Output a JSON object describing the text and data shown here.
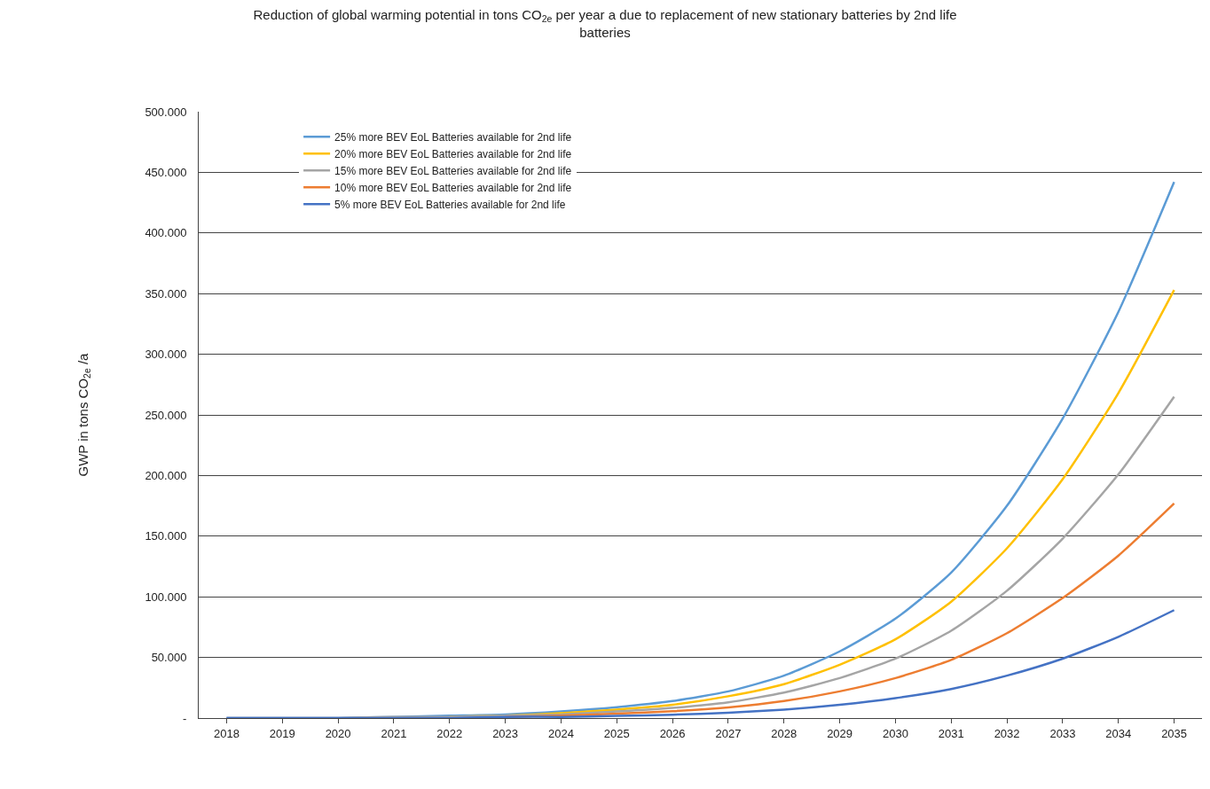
{
  "chart_data": {
    "type": "line",
    "title": "Reduction of global warming potential in tons CO$_{2e}$ per year a due to replacement of new stationary batteries by 2nd life batteries",
    "ylabel": "GWP in tons CO$_{2e}$ /a",
    "categories": [
      "2018",
      "2019",
      "2020",
      "2021",
      "2022",
      "2023",
      "2024",
      "2025",
      "2026",
      "2027",
      "2028",
      "2029",
      "2030",
      "2031",
      "2032",
      "2033",
      "2034",
      "2035"
    ],
    "series": [
      {
        "name": "25% more BEV EoL Batteries available for 2nd life",
        "color": "#5b9bd5",
        "values": [
          0,
          0,
          0,
          1000,
          2000,
          3000,
          5500,
          9000,
          14000,
          22000,
          35000,
          55000,
          82000,
          120000,
          175000,
          247000,
          335000,
          442000
        ]
      },
      {
        "name": "20% more BEV EoL Batteries available for 2nd life",
        "color": "#ffc000",
        "values": [
          null,
          null,
          null,
          null,
          1000,
          2000,
          4000,
          7000,
          11000,
          18000,
          28000,
          44000,
          65000,
          96000,
          140000,
          197000,
          268000,
          353000
        ]
      },
      {
        "name": "15% more BEV EoL Batteries available for 2nd life",
        "color": "#a5a5a5",
        "values": [
          0,
          0,
          0,
          1000,
          1000,
          2000,
          3000,
          5400,
          8400,
          13000,
          21000,
          33000,
          49000,
          72000,
          105000,
          148000,
          201000,
          265000
        ]
      },
      {
        "name": "10% more BEV EoL Batteries available for 2nd life",
        "color": "#ed7d31",
        "values": [
          null,
          null,
          null,
          null,
          null,
          1000,
          2000,
          3600,
          5600,
          8800,
          14000,
          22000,
          33000,
          48000,
          70000,
          99000,
          134000,
          177000
        ]
      },
      {
        "name": "5% more BEV EoL Batteries available for 2nd life",
        "color": "#4472c4",
        "values": [
          0,
          0,
          0,
          0,
          0,
          1000,
          1000,
          1800,
          2800,
          4400,
          7000,
          11000,
          16500,
          24000,
          35000,
          49000,
          67000,
          89000
        ]
      }
    ],
    "ylim": [
      0,
      500000
    ],
    "yticks": [
      {
        "value": 0,
        "label": "-"
      },
      {
        "value": 50000,
        "label": "50.000"
      },
      {
        "value": 100000,
        "label": "100.000"
      },
      {
        "value": 150000,
        "label": "150.000"
      },
      {
        "value": 200000,
        "label": "200.000"
      },
      {
        "value": 250000,
        "label": "250.000"
      },
      {
        "value": 300000,
        "label": "300.000"
      },
      {
        "value": 350000,
        "label": "350.000"
      },
      {
        "value": 400000,
        "label": "400.000"
      },
      {
        "value": 450000,
        "label": "450.000"
      },
      {
        "value": 500000,
        "label": "500.000"
      }
    ],
    "grid": "y",
    "legend": "top left",
    "marker": "none",
    "line_style": "solid"
  }
}
